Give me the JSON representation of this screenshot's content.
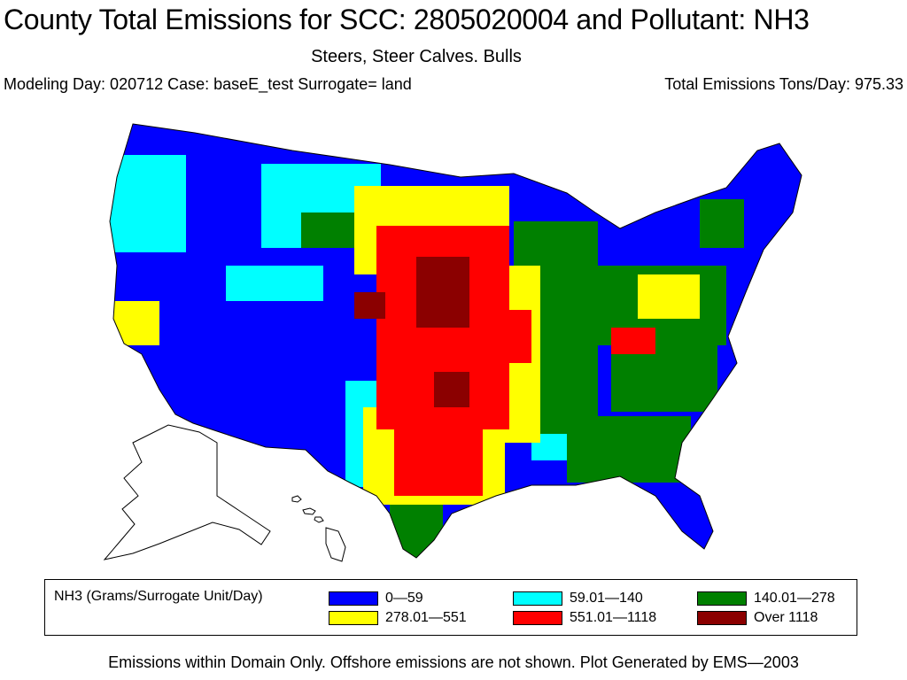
{
  "title": "County Total Emissions for SCC: 2805020004 and Pollutant: NH3",
  "subtitle": "Steers, Steer Calves. Bulls",
  "meta": {
    "left": "Modeling Day: 020712 Case: baseE_test Surrogate=  land",
    "right": "Total Emissions Tons/Day: 975.33"
  },
  "legend": {
    "title": "NH3 (Grams/Surrogate Unit/Day)",
    "items": [
      {
        "label": "0—59",
        "color": "#0000ff"
      },
      {
        "label": "59.01—140",
        "color": "#00ffff"
      },
      {
        "label": "140.01—278",
        "color": "#008000"
      },
      {
        "label": "278.01—551",
        "color": "#ffff00"
      },
      {
        "label": "551.01—1118",
        "color": "#ff0000"
      },
      {
        "label": "Over  1118",
        "color": "#8b0000"
      }
    ]
  },
  "footer": "Emissions within Domain Only. Offshore emissions are not shown. Plot Generated by EMS—2003"
}
